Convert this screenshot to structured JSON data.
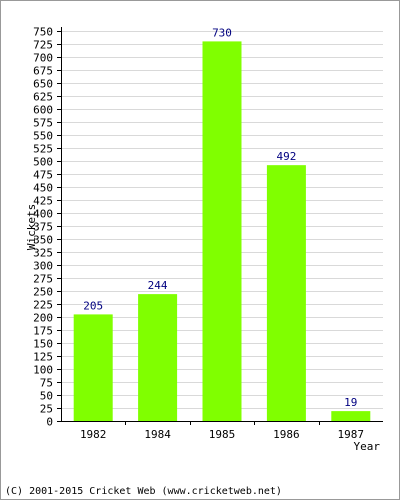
{
  "chart_data": {
    "type": "bar",
    "categories": [
      "1982",
      "1984",
      "1985",
      "1986",
      "1987"
    ],
    "series": [
      {
        "values": [
          205,
          244,
          730,
          492,
          19
        ]
      }
    ],
    "data_labels": [
      "205",
      "244",
      "730",
      "492",
      "19"
    ],
    "xlabel": "Year",
    "ylabel": "Wickets",
    "ylim": [
      0,
      750
    ],
    "ytick_step": 25,
    "grid": true,
    "bar_color": "#80ff00",
    "grid_color": "#d9d9d9",
    "label_color": "#000080"
  },
  "footer": "(C) 2001-2015 Cricket Web (www.cricketweb.net)"
}
